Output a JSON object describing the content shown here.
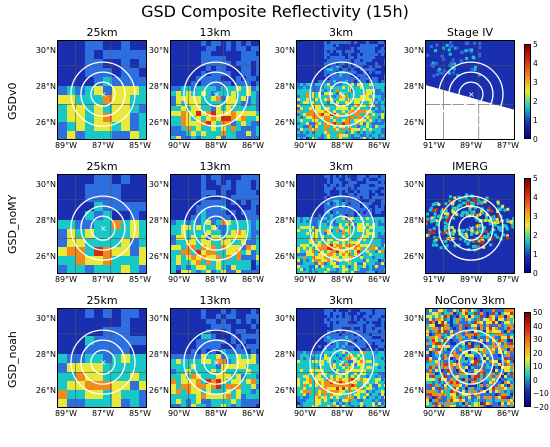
{
  "title": "GSD Composite Reflectivity (15h)",
  "rows": [
    {
      "label": "GSDv0",
      "panels": [
        {
          "title": "25km",
          "scheme": "model",
          "yticks": [
            "30°N",
            "28°N",
            "26°N"
          ],
          "xticks": [
            "89°W",
            "87°W",
            "85°W"
          ]
        },
        {
          "title": "13km",
          "scheme": "model",
          "yticks": [
            "30°N",
            "28°N",
            "26°N"
          ],
          "xticks": [
            "90°W",
            "88°W",
            "86°W"
          ]
        },
        {
          "title": "3km",
          "scheme": "model",
          "yticks": [
            "30°N",
            "28°N",
            "26°N"
          ],
          "xticks": [
            "90°W",
            "88°W",
            "86°W"
          ]
        },
        {
          "title": "Stage IV",
          "scheme": "stage4",
          "yticks": [
            "30°N",
            "28°N",
            "26°N"
          ],
          "xticks": [
            "91°W",
            "89°W",
            "87°W"
          ]
        }
      ]
    },
    {
      "label": "GSD_noMY",
      "panels": [
        {
          "title": "25km",
          "scheme": "model",
          "yticks": [
            "30°N",
            "28°N",
            "26°N"
          ],
          "xticks": [
            "89°W",
            "87°W",
            "85°W"
          ]
        },
        {
          "title": "13km",
          "scheme": "model",
          "yticks": [
            "30°N",
            "28°N",
            "26°N"
          ],
          "xticks": [
            "90°W",
            "88°W",
            "86°W"
          ]
        },
        {
          "title": "3km",
          "scheme": "model",
          "yticks": [
            "30°N",
            "28°N",
            "26°N"
          ],
          "xticks": [
            "90°W",
            "88°W",
            "86°W"
          ]
        },
        {
          "title": "IMERG",
          "scheme": "imerg",
          "yticks": [
            "30°N",
            "28°N",
            "26°N"
          ],
          "xticks": [
            "91°W",
            "89°W",
            "87°W"
          ]
        }
      ]
    },
    {
      "label": "GSD_noah",
      "panels": [
        {
          "title": "25km",
          "scheme": "model",
          "yticks": [
            "30°N",
            "28°N",
            "26°N"
          ],
          "xticks": [
            "89°W",
            "87°W",
            "85°W"
          ]
        },
        {
          "title": "13km",
          "scheme": "model",
          "yticks": [
            "30°N",
            "28°N",
            "26°N"
          ],
          "xticks": [
            "90°W",
            "88°W",
            "86°W"
          ]
        },
        {
          "title": "3km",
          "scheme": "model",
          "yticks": [
            "30°N",
            "28°N",
            "26°N"
          ],
          "xticks": [
            "90°W",
            "88°W",
            "86°W"
          ]
        },
        {
          "title": "NoConv 3km",
          "scheme": "noconv",
          "yticks": [
            "30°N",
            "28°N",
            "26°N"
          ],
          "xticks": [
            "90°W",
            "88°W",
            "86°W"
          ]
        }
      ]
    }
  ],
  "colorbars": [
    {
      "ticks": [
        "5",
        "4",
        "3",
        "2",
        "1",
        "0"
      ]
    },
    {
      "ticks": [
        "5",
        "4",
        "3",
        "2",
        "1",
        "0"
      ]
    },
    {
      "ticks": [
        "50",
        "40",
        "30",
        "20",
        "10",
        "0",
        "−10",
        "−20"
      ]
    }
  ],
  "colors": {
    "low": "#1a2fb0",
    "mid": "#19c7c7",
    "high": "#e8e83a",
    "peak": "#d42a10",
    "max": "#7a0000"
  }
}
